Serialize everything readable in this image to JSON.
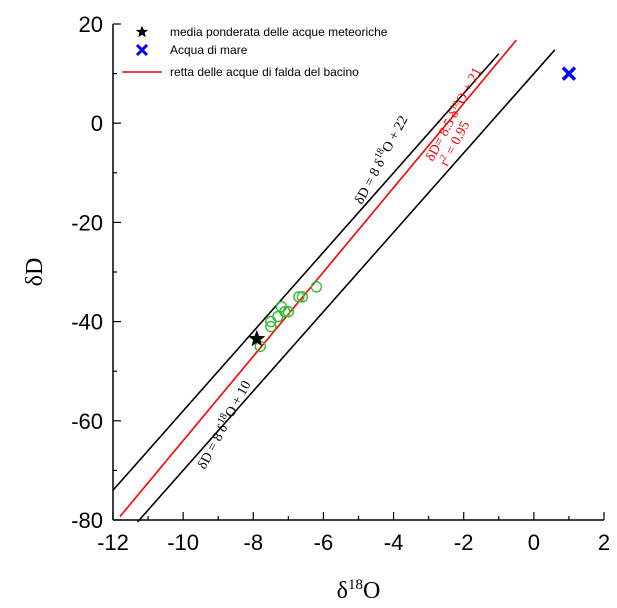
{
  "chart_data": {
    "type": "scatter",
    "xlabel_base": "δ",
    "xlabel_sup": "18",
    "xlabel_tail": "O",
    "ylabel": "δD",
    "xlim": [
      -12,
      2
    ],
    "ylim": [
      -80,
      20
    ],
    "x_ticks": [
      -12,
      -10,
      -8,
      -6,
      -4,
      -2,
      0,
      2
    ],
    "y_ticks": [
      -80,
      -60,
      -40,
      -20,
      0,
      20
    ],
    "grid": false,
    "legend_position": "top-left",
    "legend": [
      {
        "label": "media ponderata delle acque meteoriche",
        "marker": "star",
        "color": "#000000"
      },
      {
        "label": "Acqua di mare",
        "marker": "x",
        "color": "#0000ff"
      },
      {
        "label": "retta delle acque di falda del bacino",
        "marker": "line",
        "color": "#ff0000"
      }
    ],
    "lines": [
      {
        "slope": 8,
        "intercept": 22,
        "color": "#000000",
        "x_range": [
          -12,
          -1
        ]
      },
      {
        "slope": 8,
        "intercept": 10,
        "color": "#000000",
        "x_range": [
          -11.3,
          0.6
        ]
      },
      {
        "slope": 8.5,
        "intercept": 21,
        "color": "#ff0000",
        "x_range": [
          -11.8,
          -0.5
        ]
      }
    ],
    "weighted_mean_rain": {
      "x": -7.9,
      "y": -43.5
    },
    "sea_water": {
      "x": 1.0,
      "y": 10.0
    },
    "groundwater_samples": {
      "color": "#33bb33",
      "points": [
        {
          "x": -7.8,
          "y": -45
        },
        {
          "x": -7.5,
          "y": -41
        },
        {
          "x": -7.5,
          "y": -40
        },
        {
          "x": -7.3,
          "y": -39
        },
        {
          "x": -7.1,
          "y": -38
        },
        {
          "x": -7.2,
          "y": -37
        },
        {
          "x": -7.0,
          "y": -38
        },
        {
          "x": -6.7,
          "y": -35
        },
        {
          "x": -6.6,
          "y": -35
        },
        {
          "x": -6.2,
          "y": -33
        }
      ]
    },
    "annotations": {
      "upper": {
        "base": "δD = 8 δ",
        "sup": "18",
        "tail": "O + 22",
        "color": "#000000"
      },
      "lower": {
        "base": "δD = 8 δ",
        "sup": "18",
        "tail": "O + 10",
        "color": "#000000"
      },
      "red_eq": {
        "base": "δD= 8.5 δ",
        "sup": "18",
        "tail": "O + 21",
        "color": "#ff0000"
      },
      "red_r2": {
        "base": "r",
        "sup": "2",
        "tail": " = 0.95",
        "color": "#ff0000"
      }
    }
  }
}
